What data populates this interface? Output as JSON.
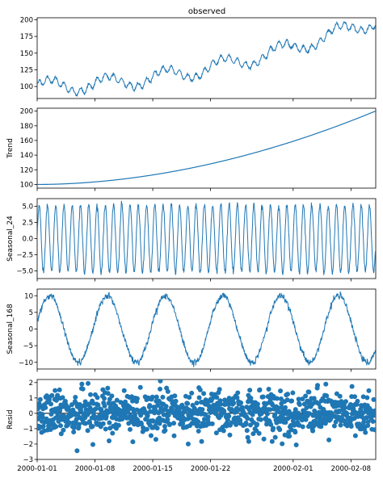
{
  "figure_title": "observed",
  "chart_data": [
    {
      "type": "line",
      "panel": "observed",
      "title": "observed",
      "ylabel": "",
      "ylim": [
        82,
        203
      ],
      "yticks": [
        100,
        125,
        150,
        175,
        200
      ],
      "xlim": [
        "2000-01-01",
        "2000-02-11"
      ],
      "xticks": [
        "2000-01-01",
        "2000-01-08",
        "2000-01-15",
        "2000-01-22",
        "2000-02-01",
        "2000-02-08"
      ],
      "x_labels_shown": false,
      "color": "#1f77b4",
      "series": [
        {
          "x_start": "2000-01-01",
          "x_step_hours": 1,
          "description": "hourly values = trend + seasonal_24 + seasonal_168 + resid (start ~104, end ~193)"
        }
      ]
    },
    {
      "type": "line",
      "panel": "trend",
      "ylabel": "Trend",
      "ylim": [
        95,
        204
      ],
      "yticks": [
        100,
        120,
        140,
        160,
        180,
        200
      ],
      "xlim": [
        "2000-01-01",
        "2000-02-11"
      ],
      "color": "#1f77b4",
      "series": [
        {
          "x": [
            "2000-01-01",
            "2000-01-11",
            "2000-01-21",
            "2000-01-31",
            "2000-02-11"
          ],
          "y": [
            100,
            106,
            124,
            154,
            200
          ]
        }
      ]
    },
    {
      "type": "line",
      "panel": "seasonal_24",
      "ylabel": "Seasonal_24",
      "ylim": [
        -6.2,
        6.2
      ],
      "yticks": [
        -5.0,
        -2.5,
        0.0,
        2.5,
        5.0
      ],
      "ytick_labels": [
        "−5.0",
        "−2.5",
        "0.0",
        "2.5",
        "5.0"
      ],
      "xlim": [
        "2000-01-01",
        "2000-02-11"
      ],
      "color": "#1f77b4",
      "series": [
        {
          "period_hours": 24,
          "amplitude": 5.2
        }
      ]
    },
    {
      "type": "line",
      "panel": "seasonal_168",
      "ylabel": "Seasonal_168",
      "ylim": [
        -12,
        12
      ],
      "yticks": [
        -10,
        -5,
        0,
        5,
        10
      ],
      "ytick_labels": [
        "−10",
        "−5",
        "0",
        "5",
        "10"
      ],
      "xlim": [
        "2000-01-01",
        "2000-02-11"
      ],
      "color": "#1f77b4",
      "series": [
        {
          "period_hours": 168,
          "amplitude": 10,
          "peaks": [
            "2000-01-03",
            "2000-01-10",
            "2000-01-17",
            "2000-01-24",
            "2000-01-31",
            "2000-02-07"
          ]
        }
      ]
    },
    {
      "type": "scatter",
      "panel": "resid",
      "ylabel": "Resid",
      "ylim": [
        -3,
        2.2
      ],
      "yticks": [
        -3,
        -2,
        -1,
        0,
        1,
        2
      ],
      "ytick_labels": [
        "−3",
        "−2",
        "−1",
        "0",
        "1",
        "2"
      ],
      "xlim": [
        "2000-01-01",
        "2000-02-11"
      ],
      "xticks": [
        "2000-01-01",
        "2000-01-08",
        "2000-01-15",
        "2000-01-22",
        "2000-02-01",
        "2000-02-08"
      ],
      "x_labels_shown": true,
      "zero_line": true,
      "color": "#1f77b4",
      "series": [
        {
          "distribution": "approximately normal, mean 0, sd 0.7",
          "approx_range": [
            -2.9,
            2.1
          ]
        }
      ]
    }
  ]
}
